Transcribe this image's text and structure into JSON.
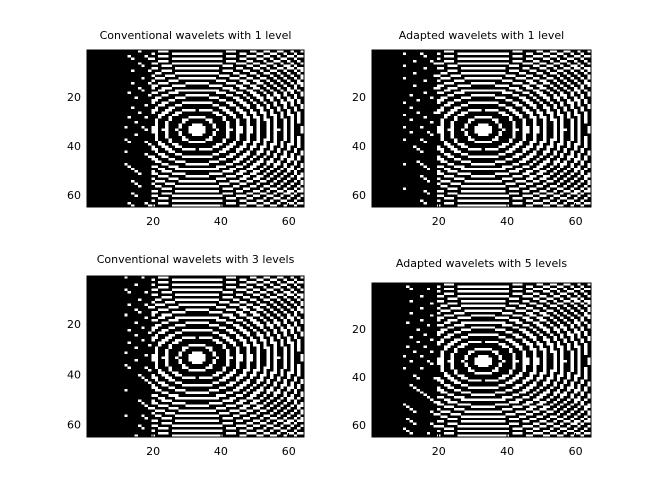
{
  "chart_data": [
    {
      "type": "image",
      "title": "Conventional wavelets with 1 level",
      "xlim": [
        0.5,
        64.5
      ],
      "ylim": [
        0.5,
        64.5
      ],
      "xticks": [
        20,
        40,
        60
      ],
      "yticks": [
        20,
        40,
        60
      ]
    },
    {
      "type": "image",
      "title": "Adapted wavelets with 1 level",
      "xlim": [
        0.5,
        64.5
      ],
      "ylim": [
        0.5,
        64.5
      ],
      "xticks": [
        20,
        40,
        60
      ],
      "yticks": [
        20,
        40,
        60
      ]
    },
    {
      "type": "image",
      "title": "Conventional wavelets with 3 levels",
      "xlim": [
        0.5,
        64.5
      ],
      "ylim": [
        0.5,
        64.5
      ],
      "xticks": [
        20,
        40,
        60
      ],
      "yticks": [
        20,
        40,
        60
      ]
    },
    {
      "type": "image",
      "title": "Adapted wavelets with 5 levels",
      "xlim": [
        0.5,
        64.5
      ],
      "ylim": [
        0.5,
        64.5
      ],
      "xticks": [
        20,
        40,
        60
      ],
      "yticks": [
        20,
        40,
        60
      ]
    }
  ]
}
